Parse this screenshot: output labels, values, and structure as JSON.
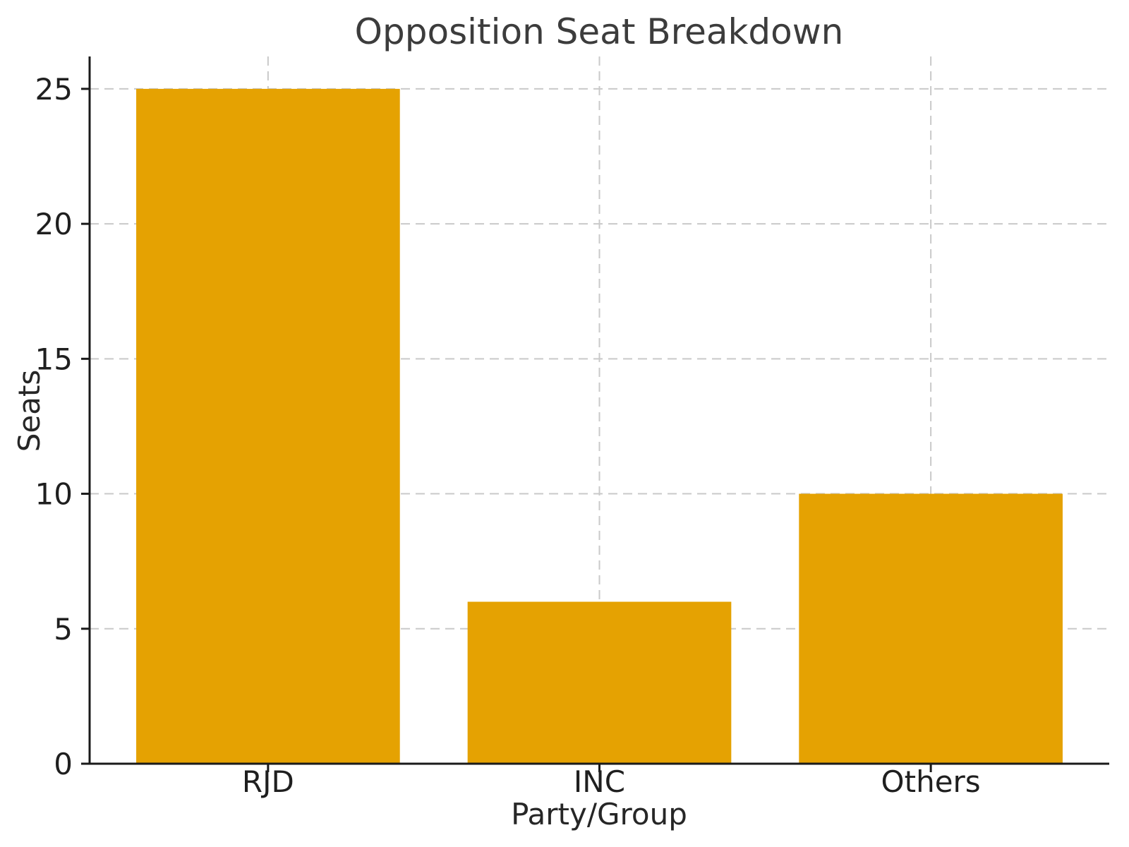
{
  "figure": {
    "background": "#ffffff"
  },
  "chart_data": {
    "type": "bar",
    "title": "Opposition Seat Breakdown",
    "xlabel": "Party/Group",
    "ylabel": "Seats",
    "categories": [
      "RJD",
      "INC",
      "Others"
    ],
    "values": [
      25,
      6,
      10
    ],
    "yticks": [
      0,
      5,
      10,
      15,
      20,
      25
    ],
    "ylim": [
      0,
      26.2
    ],
    "grid": "on",
    "grid_style": "dashed",
    "legend_position": "none",
    "colors": {
      "bar": "#E5A202",
      "grid": "#c9c9c9",
      "axis": "#1a1a1a",
      "tick_text": "#1f1f1f",
      "label_text": "#262626",
      "title_text": "#3c3c3c"
    }
  }
}
